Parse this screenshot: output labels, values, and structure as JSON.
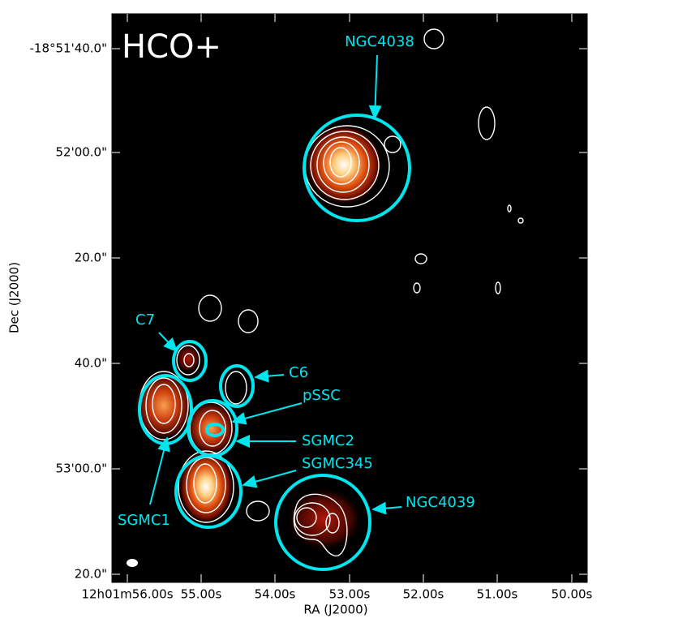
{
  "figure": {
    "panel_label": "HCO+",
    "x_label": "RA (J2000)",
    "y_label": "Dec (J2000)",
    "x_ticks": [
      "12h01m56.00s",
      "55.00s",
      "54.00s",
      "53.00s",
      "52.00s",
      "51.00s",
      "50.00s"
    ],
    "y_ticks": [
      "-18°51'40.0\"",
      "52'00.0\"",
      "20.0\"",
      "40.0\"",
      "53'00.0\"",
      "20.0\""
    ],
    "annotations": [
      "NGC4038",
      "NGC4039",
      "C7",
      "C6",
      "pSSC",
      "SGMC2",
      "SGMC345",
      "SGMC1"
    ]
  }
}
